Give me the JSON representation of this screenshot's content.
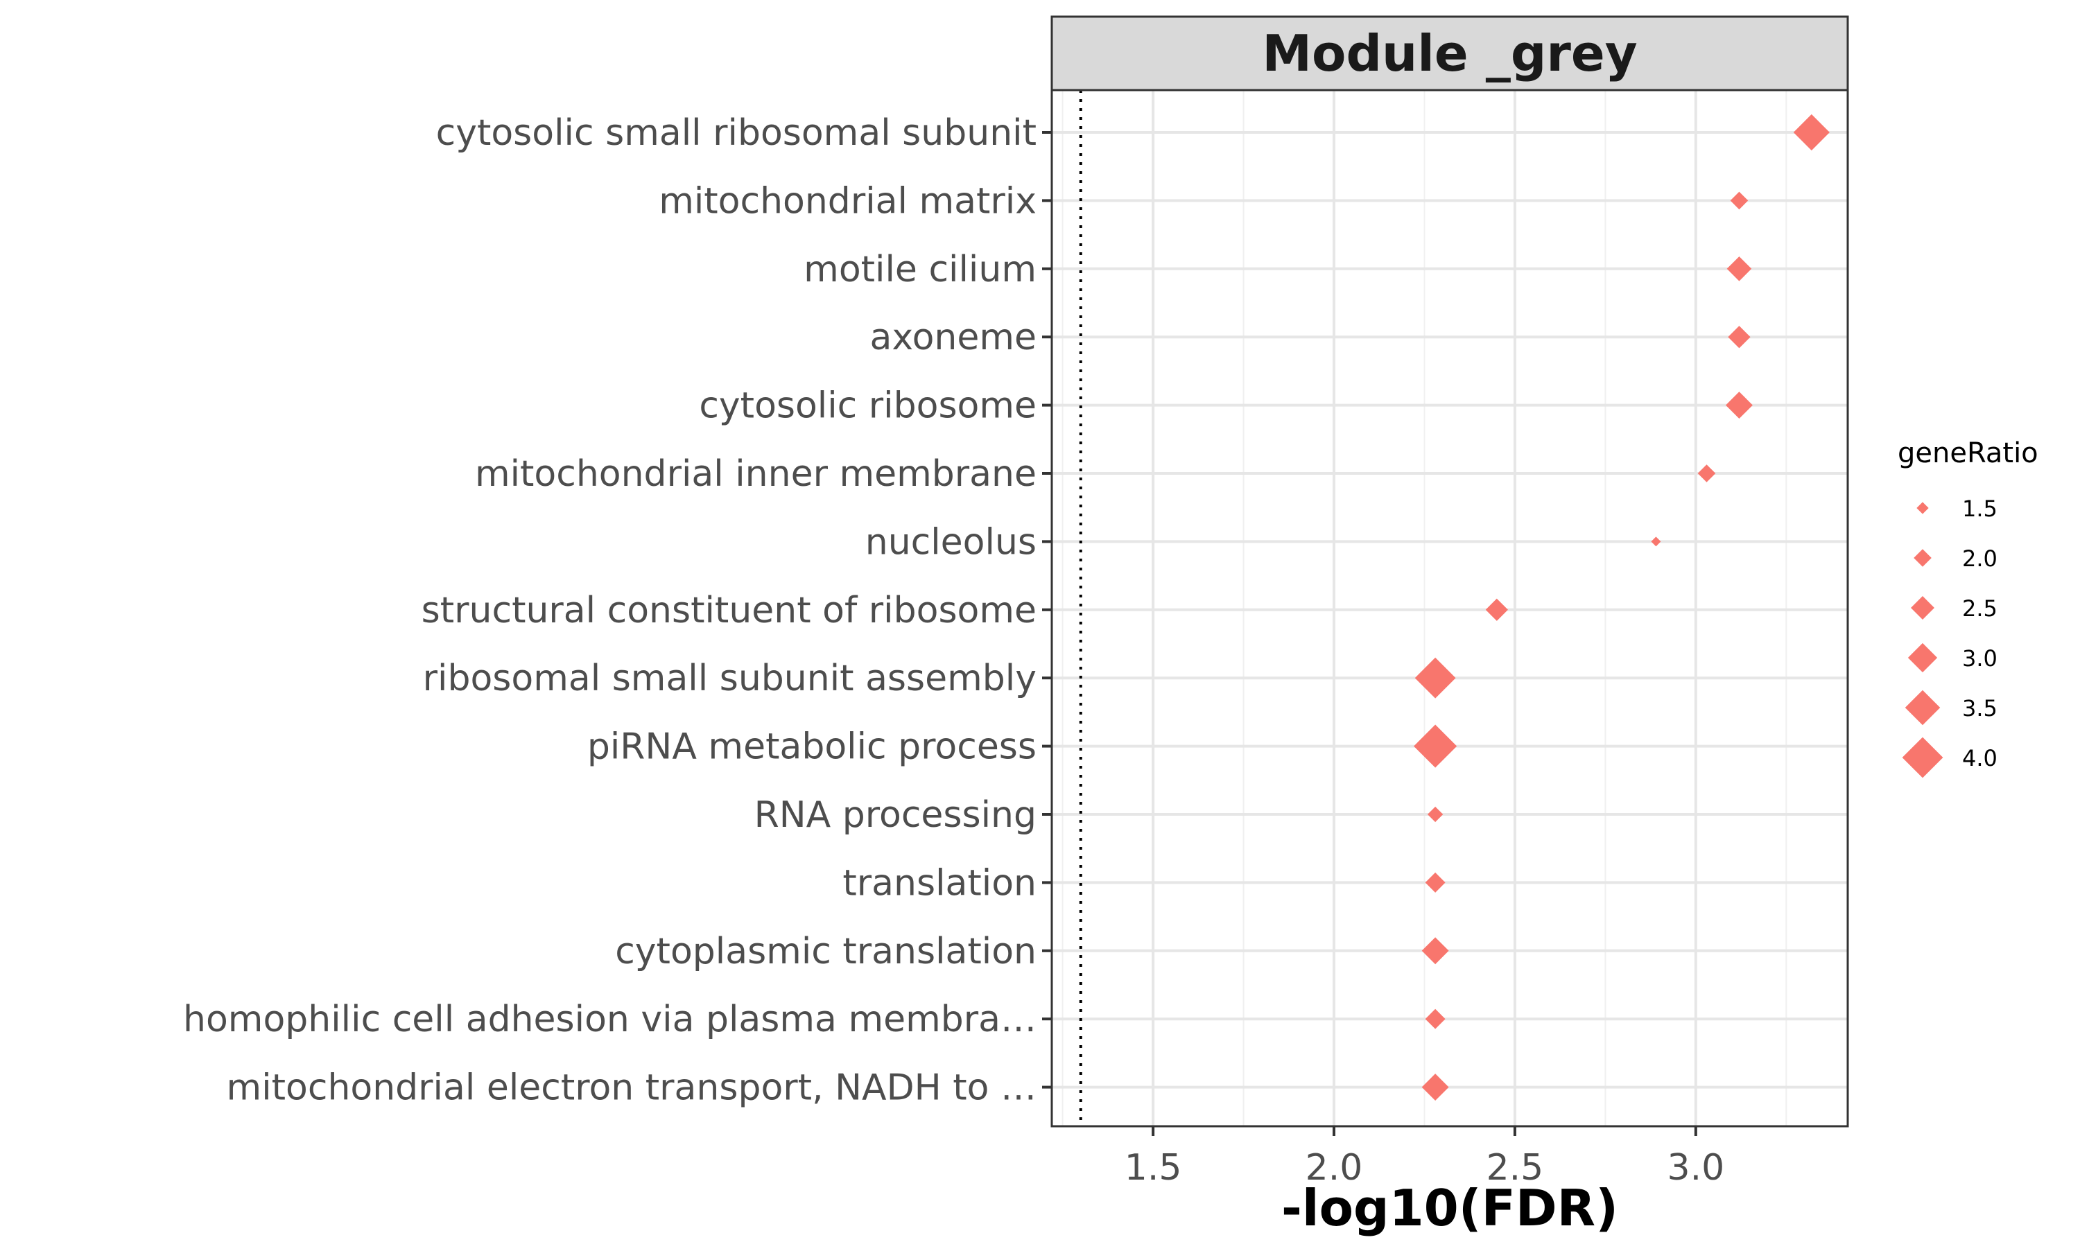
{
  "chart_data": {
    "type": "scatter",
    "panel_title": "Module _grey",
    "xlabel": "-log10(FDR)",
    "ylabel": "",
    "xlim": [
      1.22,
      3.42
    ],
    "xticks": [
      1.5,
      2.0,
      2.5,
      3.0
    ],
    "xtick_labels": [
      "1.5",
      "2.0",
      "2.5",
      "3.0"
    ],
    "reference_line_x": 1.3,
    "grid": true,
    "point_color": "#f8766d",
    "point_shape": "diamond",
    "categories": [
      "cytosolic small ribosomal subunit",
      "mitochondrial matrix",
      "motile cilium",
      "axoneme",
      "cytosolic ribosome",
      "mitochondrial inner membrane",
      "nucleolus",
      "structural constituent of ribosome",
      "ribosomal small subunit assembly",
      "piRNA metabolic process",
      "RNA processing",
      "translation",
      "cytoplasmic translation",
      "homophilic cell adhesion via plasma membra…",
      "mitochondrial electron transport, NADH to …"
    ],
    "points": [
      {
        "y": "cytosolic small ribosomal subunit",
        "x": 3.32,
        "geneRatio": 3.6
      },
      {
        "y": "mitochondrial matrix",
        "x": 3.12,
        "geneRatio": 2.0
      },
      {
        "y": "motile cilium",
        "x": 3.12,
        "geneRatio": 2.6
      },
      {
        "y": "axoneme",
        "x": 3.12,
        "geneRatio": 2.4
      },
      {
        "y": "cytosolic ribosome",
        "x": 3.12,
        "geneRatio": 2.8
      },
      {
        "y": "mitochondrial inner membrane",
        "x": 3.03,
        "geneRatio": 2.0
      },
      {
        "y": "nucleolus",
        "x": 2.89,
        "geneRatio": 1.3
      },
      {
        "y": "structural constituent of ribosome",
        "x": 2.45,
        "geneRatio": 2.4
      },
      {
        "y": "ribosomal small subunit assembly",
        "x": 2.28,
        "geneRatio": 4.0
      },
      {
        "y": "piRNA metabolic process",
        "x": 2.28,
        "geneRatio": 4.2
      },
      {
        "y": "RNA processing",
        "x": 2.28,
        "geneRatio": 1.8
      },
      {
        "y": "translation",
        "x": 2.28,
        "geneRatio": 2.2
      },
      {
        "y": "cytoplasmic translation",
        "x": 2.28,
        "geneRatio": 2.8
      },
      {
        "y": "homophilic cell adhesion via plasma membra…",
        "x": 2.28,
        "geneRatio": 2.2
      },
      {
        "y": "mitochondrial electron transport, NADH to …",
        "x": 2.28,
        "geneRatio": 2.8
      }
    ],
    "legend": {
      "title": "geneRatio",
      "position": "right",
      "entries": [
        {
          "label": "1.5",
          "value": 1.5
        },
        {
          "label": "2.0",
          "value": 2.0
        },
        {
          "label": "2.5",
          "value": 2.5
        },
        {
          "label": "3.0",
          "value": 3.0
        },
        {
          "label": "3.5",
          "value": 3.5
        },
        {
          "label": "4.0",
          "value": 4.0
        }
      ]
    }
  }
}
